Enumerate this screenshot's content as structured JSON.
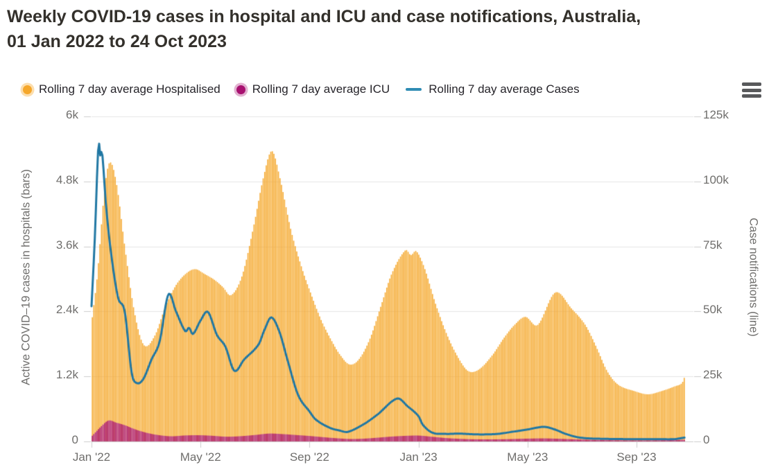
{
  "title": {
    "line1": "Weekly COVID-19 cases in hospital and ICU and case notifications, Australia,",
    "line2": "01 Jan 2022 to 24 Oct 2023"
  },
  "legend": {
    "items": [
      {
        "label": "Rolling 7 day average Hospitalised",
        "color": "#f5a72b",
        "marker": "circle"
      },
      {
        "label": "Rolling 7 day average ICU",
        "color": "#a81170",
        "marker": "circle"
      },
      {
        "label": "Rolling 7 day average Cases",
        "color": "#2f8cb4",
        "marker": "line"
      }
    ]
  },
  "menu": {
    "icon": "hamburger-icon"
  },
  "chart_data": {
    "type": "combo-bar-line",
    "period": "01 Jan 2022 to 24 Oct 2023",
    "x_axis": {
      "unit": "months since 01 Jan 2022",
      "domain_months": [
        0,
        21.77
      ],
      "ticks": [
        {
          "m": 0,
          "label": "Jan '22"
        },
        {
          "m": 4,
          "label": "May '22"
        },
        {
          "m": 8,
          "label": "Sep '22"
        },
        {
          "m": 12,
          "label": "Jan '23"
        },
        {
          "m": 16,
          "label": "May '23"
        },
        {
          "m": 20,
          "label": "Sep '23"
        }
      ]
    },
    "left_axis": {
      "title": "Active COVID–19 cases in hospitals (bars)",
      "range": [
        0,
        6000
      ],
      "ticks": [
        {
          "v": 0,
          "label": "0"
        },
        {
          "v": 1200,
          "label": "1.2k"
        },
        {
          "v": 2400,
          "label": "2.4k"
        },
        {
          "v": 3600,
          "label": "3.6k"
        },
        {
          "v": 4800,
          "label": "4.8k"
        },
        {
          "v": 6000,
          "label": "6k"
        }
      ]
    },
    "right_axis": {
      "title": "Case notifications (line)",
      "range": [
        0,
        125000
      ],
      "ticks": [
        {
          "v": 0,
          "label": "0"
        },
        {
          "v": 25000,
          "label": "25k"
        },
        {
          "v": 50000,
          "label": "50k"
        },
        {
          "v": 75000,
          "label": "75k"
        },
        {
          "v": 100000,
          "label": "100k"
        },
        {
          "v": 125000,
          "label": "125k"
        }
      ]
    },
    "colors": {
      "hospitalised": "#f5a72b",
      "icu": "#a81170",
      "cases": "#2077a3",
      "gridline": "#e4e4e4",
      "axis_line": "#cccccc",
      "tick_mark": "#cccccc"
    },
    "series": [
      {
        "name": "Rolling 7 day average Hospitalised",
        "render": "bar",
        "axis": "left",
        "points": [
          [
            0,
            2250
          ],
          [
            0.2,
            3100
          ],
          [
            0.45,
            4600
          ],
          [
            0.65,
            5150
          ],
          [
            0.9,
            4750
          ],
          [
            1.2,
            3600
          ],
          [
            1.55,
            2400
          ],
          [
            1.9,
            1780
          ],
          [
            2.3,
            1950
          ],
          [
            2.7,
            2500
          ],
          [
            3.1,
            2900
          ],
          [
            3.5,
            3120
          ],
          [
            3.8,
            3180
          ],
          [
            4.1,
            3100
          ],
          [
            4.5,
            2980
          ],
          [
            4.8,
            2850
          ],
          [
            5.1,
            2700
          ],
          [
            5.5,
            3050
          ],
          [
            5.9,
            3900
          ],
          [
            6.3,
            4900
          ],
          [
            6.6,
            5360
          ],
          [
            6.9,
            4850
          ],
          [
            7.3,
            3900
          ],
          [
            7.7,
            3200
          ],
          [
            8.0,
            2770
          ],
          [
            8.4,
            2250
          ],
          [
            8.8,
            1850
          ],
          [
            9.1,
            1600
          ],
          [
            9.45,
            1420
          ],
          [
            9.8,
            1520
          ],
          [
            10.2,
            1900
          ],
          [
            10.6,
            2500
          ],
          [
            11.0,
            3100
          ],
          [
            11.5,
            3530
          ],
          [
            11.7,
            3440
          ],
          [
            11.9,
            3510
          ],
          [
            12.2,
            3200
          ],
          [
            12.6,
            2550
          ],
          [
            13.0,
            2000
          ],
          [
            13.4,
            1580
          ],
          [
            13.8,
            1300
          ],
          [
            14.2,
            1330
          ],
          [
            14.7,
            1600
          ],
          [
            15.1,
            1900
          ],
          [
            15.5,
            2150
          ],
          [
            15.9,
            2300
          ],
          [
            16.35,
            2150
          ],
          [
            17.0,
            2750
          ],
          [
            17.6,
            2450
          ],
          [
            18.1,
            2150
          ],
          [
            18.5,
            1750
          ],
          [
            18.9,
            1300
          ],
          [
            19.3,
            1050
          ],
          [
            19.9,
            930
          ],
          [
            20.4,
            870
          ],
          [
            20.9,
            930
          ],
          [
            21.4,
            1020
          ],
          [
            21.65,
            1080
          ],
          [
            21.77,
            1230
          ]
        ]
      },
      {
        "name": "Rolling 7 day average ICU",
        "render": "bar",
        "axis": "left",
        "points": [
          [
            0,
            100
          ],
          [
            0.3,
            260
          ],
          [
            0.6,
            385
          ],
          [
            0.9,
            345
          ],
          [
            1.2,
            300
          ],
          [
            1.6,
            220
          ],
          [
            2.0,
            160
          ],
          [
            2.4,
            120
          ],
          [
            2.9,
            95
          ],
          [
            3.4,
            110
          ],
          [
            3.9,
            115
          ],
          [
            4.4,
            105
          ],
          [
            4.9,
            88
          ],
          [
            5.4,
            95
          ],
          [
            6.0,
            120
          ],
          [
            6.5,
            145
          ],
          [
            7.0,
            135
          ],
          [
            7.5,
            118
          ],
          [
            8.0,
            100
          ],
          [
            8.5,
            78
          ],
          [
            9.0,
            58
          ],
          [
            9.5,
            45
          ],
          [
            10.0,
            52
          ],
          [
            10.5,
            70
          ],
          [
            11.0,
            90
          ],
          [
            11.6,
            105
          ],
          [
            12.0,
            108
          ],
          [
            12.5,
            85
          ],
          [
            13.0,
            62
          ],
          [
            13.5,
            48
          ],
          [
            14.0,
            40
          ],
          [
            15.0,
            40
          ],
          [
            16.0,
            52
          ],
          [
            16.6,
            56
          ],
          [
            17.2,
            48
          ],
          [
            18.0,
            34
          ],
          [
            19.0,
            24
          ],
          [
            20.0,
            20
          ],
          [
            21.0,
            24
          ],
          [
            21.77,
            30
          ]
        ]
      },
      {
        "name": "Rolling 7 day average Cases",
        "render": "line",
        "axis": "right",
        "points": [
          [
            0,
            52000
          ],
          [
            0.12,
            78000
          ],
          [
            0.254,
            114300
          ],
          [
            0.32,
            110000
          ],
          [
            0.39,
            111000
          ],
          [
            0.53,
            91000
          ],
          [
            0.71,
            73000
          ],
          [
            0.97,
            55500
          ],
          [
            1.22,
            49800
          ],
          [
            1.47,
            26600
          ],
          [
            1.65,
            22500
          ],
          [
            1.9,
            24000
          ],
          [
            2.2,
            31500
          ],
          [
            2.5,
            38500
          ],
          [
            2.82,
            56500
          ],
          [
            3.1,
            50000
          ],
          [
            3.44,
            42400
          ],
          [
            3.58,
            43700
          ],
          [
            3.72,
            41300
          ],
          [
            4.0,
            46500
          ],
          [
            4.27,
            49800
          ],
          [
            4.6,
            41000
          ],
          [
            4.91,
            36500
          ],
          [
            5.24,
            27200
          ],
          [
            5.6,
            31500
          ],
          [
            6.13,
            37300
          ],
          [
            6.35,
            43000
          ],
          [
            6.6,
            47700
          ],
          [
            6.9,
            42000
          ],
          [
            7.2,
            31000
          ],
          [
            7.58,
            17900
          ],
          [
            8.0,
            11500
          ],
          [
            8.22,
            8500
          ],
          [
            8.73,
            5300
          ],
          [
            9.1,
            4200
          ],
          [
            9.41,
            3700
          ],
          [
            10.0,
            6700
          ],
          [
            10.5,
            10400
          ],
          [
            11.22,
            16500
          ],
          [
            11.6,
            13500
          ],
          [
            12.0,
            9700
          ],
          [
            12.15,
            6500
          ],
          [
            12.5,
            3400
          ],
          [
            13.0,
            2900
          ],
          [
            13.5,
            3000
          ],
          [
            14.2,
            2700
          ],
          [
            14.9,
            2900
          ],
          [
            15.5,
            3800
          ],
          [
            16.0,
            4600
          ],
          [
            16.6,
            5600
          ],
          [
            17.0,
            4600
          ],
          [
            17.4,
            2900
          ],
          [
            17.8,
            1700
          ],
          [
            18.2,
            1200
          ],
          [
            18.8,
            1000
          ],
          [
            19.5,
            900
          ],
          [
            20.2,
            850
          ],
          [
            20.9,
            850
          ],
          [
            21.4,
            900
          ],
          [
            21.77,
            1500
          ]
        ]
      }
    ]
  }
}
